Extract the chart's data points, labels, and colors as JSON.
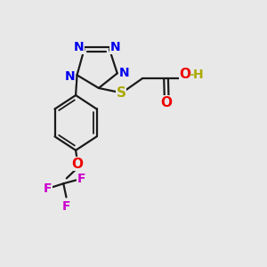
{
  "background_color": "#e8e8e8",
  "bond_color": "#1a1a1a",
  "N_color": "#0000ee",
  "S_color": "#aaaa00",
  "O_color": "#ee0000",
  "F_color": "#cc00cc",
  "H_color": "#aaaa00",
  "figsize": [
    3.0,
    3.0
  ],
  "dpi": 100,
  "xlim": [
    0,
    10
  ],
  "ylim": [
    0,
    10
  ]
}
